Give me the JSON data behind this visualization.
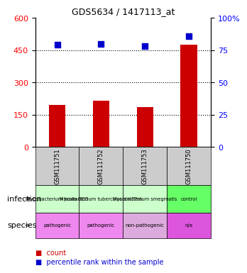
{
  "title": "GDS5634 / 1417113_at",
  "samples": [
    "GSM111751",
    "GSM111752",
    "GSM111753",
    "GSM111750"
  ],
  "counts": [
    195,
    215,
    185,
    475
  ],
  "percentiles": [
    79,
    80,
    78,
    86
  ],
  "ylim_left": [
    0,
    600
  ],
  "ylim_right": [
    0,
    100
  ],
  "yticks_left": [
    0,
    150,
    300,
    450,
    600
  ],
  "yticks_right": [
    0,
    25,
    50,
    75,
    100
  ],
  "bar_color": "#cc0000",
  "dot_color": "#0000cc",
  "infection_labels": [
    "Mycobacterium bovis BCG",
    "Mycobacterium tuberculosis H37ra",
    "Mycobacterium smegmatis",
    "control"
  ],
  "infection_colors": [
    "#ccffcc",
    "#ccffcc",
    "#ccffcc",
    "#66ff66"
  ],
  "species_labels": [
    "pathogenic",
    "pathogenic",
    "non-pathogenic",
    "n/a"
  ],
  "species_colors": [
    "#ee88ee",
    "#ee88ee",
    "#ddaadd",
    "#dd55dd"
  ],
  "sample_bg_color": "#cccccc",
  "infection_row_label": "infection",
  "species_row_label": "species",
  "legend_count_label": "count",
  "legend_pct_label": "percentile rank within the sample"
}
